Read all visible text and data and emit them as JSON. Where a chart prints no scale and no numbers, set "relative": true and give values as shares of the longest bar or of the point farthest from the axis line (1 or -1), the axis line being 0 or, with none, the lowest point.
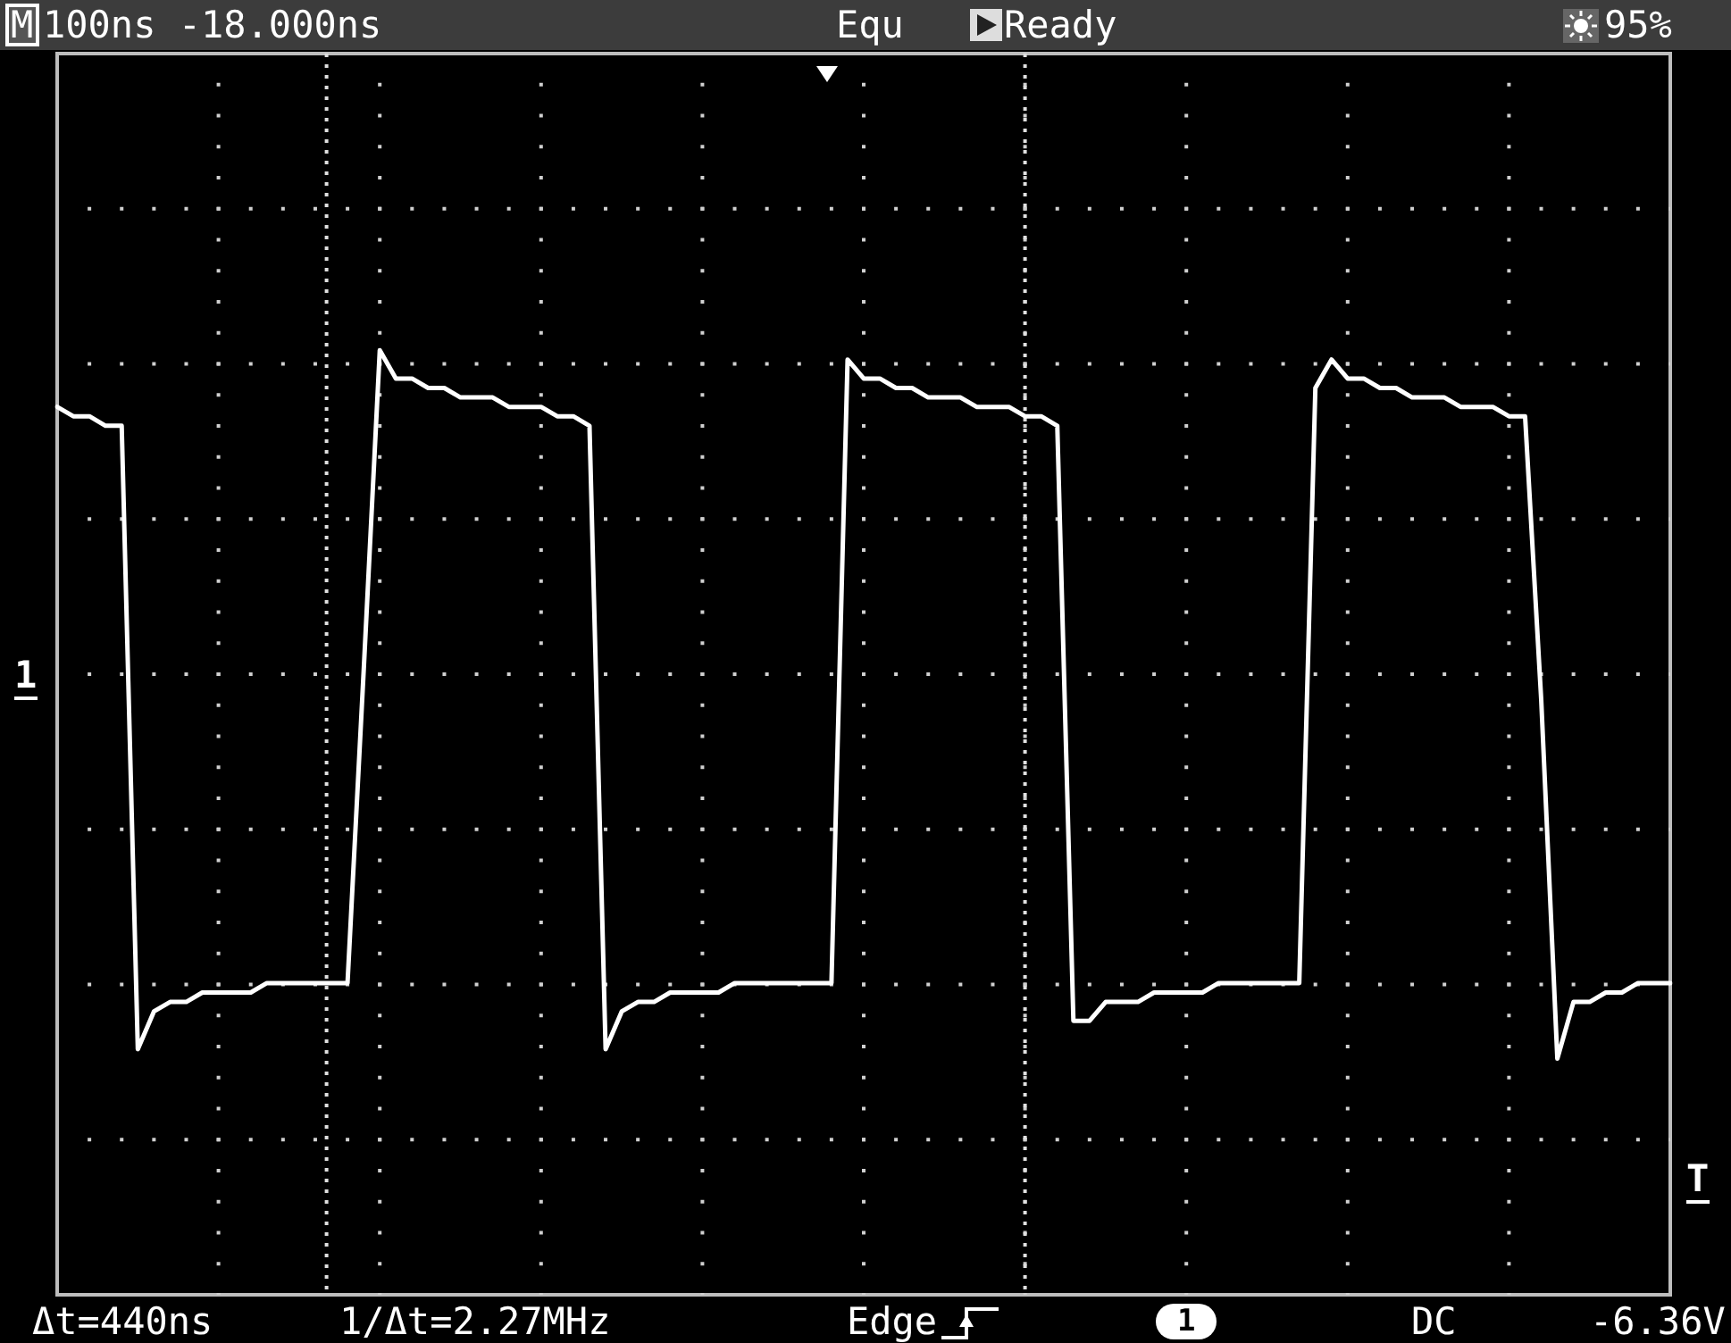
{
  "chart_data": {
    "type": "line",
    "relative": true,
    "categories": [
      null,
      null,
      null,
      null,
      null,
      null,
      null,
      null,
      null,
      null,
      null,
      null,
      null,
      null,
      null,
      null,
      null,
      null,
      null,
      null,
      null,
      null,
      null,
      null,
      null,
      null,
      null,
      null,
      null,
      null,
      null,
      null,
      null,
      null,
      null,
      null,
      null,
      null,
      null,
      null,
      null,
      null,
      null,
      null,
      null,
      null,
      null,
      null,
      null,
      null,
      null,
      null,
      null,
      null,
      null,
      null,
      null,
      null,
      null,
      null,
      null,
      null,
      null,
      null,
      null,
      null,
      null,
      null,
      null,
      null,
      null,
      null,
      null,
      null,
      null,
      null,
      null,
      null,
      null,
      null,
      null,
      null,
      null,
      null,
      null,
      null,
      null,
      null,
      null,
      null,
      null,
      null,
      null,
      null,
      null,
      null,
      null,
      null,
      null,
      null,
      null
    ],
    "series": [
      {
        "color": "#ffffff",
        "values": [
          0.94,
          0.93,
          0.93,
          0.92,
          0.92,
          0.26,
          0.3,
          0.31,
          0.31,
          0.32,
          0.32,
          0.32,
          0.32,
          0.33,
          0.33,
          0.33,
          0.33,
          0.33,
          0.33,
          0.66,
          1,
          0.97,
          0.97,
          0.96,
          0.96,
          0.95,
          0.95,
          0.95,
          0.94,
          0.94,
          0.94,
          0.93,
          0.93,
          0.92,
          0.26,
          0.3,
          0.31,
          0.31,
          0.32,
          0.32,
          0.32,
          0.32,
          0.33,
          0.33,
          0.33,
          0.33,
          0.33,
          0.33,
          0.33,
          0.99,
          0.97,
          0.97,
          0.96,
          0.96,
          0.95,
          0.95,
          0.95,
          0.94,
          0.94,
          0.94,
          0.93,
          0.93,
          0.92,
          0.29,
          0.29,
          0.31,
          0.31,
          0.31,
          0.32,
          0.32,
          0.32,
          0.32,
          0.33,
          0.33,
          0.33,
          0.33,
          0.33,
          0.33,
          0.96,
          0.99,
          0.97,
          0.97,
          0.96,
          0.96,
          0.95,
          0.95,
          0.95,
          0.94,
          0.94,
          0.94,
          0.93,
          0.93,
          0.63,
          0.25,
          0.31,
          0.31,
          0.32,
          0.32,
          0.33,
          0.33,
          0.33
        ]
      }
    ],
    "grid": true,
    "legend": false,
    "marker": "none",
    "line_style": "solid",
    "annotations": [
      "M",
      "100ns -18.000ns",
      "Equ",
      "Ready",
      "95%",
      "1",
      "T",
      "Δt=440ns",
      "1/Δt=2.27MHz",
      "Edge",
      "1",
      "DC",
      "-6.36V"
    ]
  }
}
